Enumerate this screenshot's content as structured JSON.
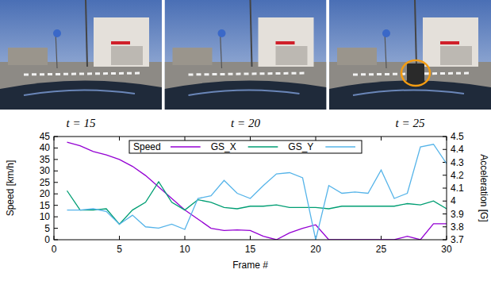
{
  "image_captions": [
    "t = 15",
    "t = 20",
    "t = 25"
  ],
  "chart_data": {
    "type": "line",
    "x_label": "Frame #",
    "y_label": "Speed [km/h]",
    "y2_label": "Acceleration [G]",
    "x": [
      1,
      2,
      3,
      4,
      5,
      6,
      7,
      8,
      9,
      10,
      11,
      12,
      13,
      14,
      15,
      16,
      17,
      18,
      19,
      20,
      21,
      22,
      23,
      24,
      25,
      26,
      27,
      28,
      29,
      30
    ],
    "xlim": [
      0,
      30
    ],
    "xticks": [
      0,
      5,
      10,
      15,
      20,
      25,
      30
    ],
    "ylim": [
      0,
      45
    ],
    "yticks": [
      0,
      5,
      10,
      15,
      20,
      25,
      30,
      35,
      40,
      45
    ],
    "y2lim": [
      3.7,
      4.5
    ],
    "y2ticks": [
      3.7,
      3.8,
      3.9,
      4,
      4.1,
      4.2,
      4.3,
      4.4,
      4.5
    ],
    "legend": "top",
    "series": [
      {
        "name": "Speed",
        "color": "#9400d3",
        "values": [
          42.5,
          41,
          38.5,
          37,
          35,
          32,
          28,
          23,
          18,
          13,
          9,
          5,
          4,
          4.3,
          4,
          1.5,
          0,
          3,
          5,
          6.5,
          0,
          0,
          0,
          0,
          0,
          0,
          1.5,
          0,
          7,
          7
        ]
      },
      {
        "name": "GS_X",
        "color": "#009e73",
        "axis": "y2",
        "values": [
          4.08,
          3.93,
          3.93,
          3.94,
          3.82,
          3.93,
          3.99,
          4.15,
          3.99,
          3.93,
          4.01,
          3.99,
          3.95,
          3.94,
          3.96,
          3.96,
          3.97,
          3.95,
          3.95,
          3.95,
          3.94,
          3.96,
          3.96,
          3.96,
          3.96,
          3.96,
          3.98,
          3.97,
          4.0,
          3.94
        ]
      },
      {
        "name": "GS_Y",
        "color": "#56b4e9",
        "axis": "y2",
        "values": [
          3.93,
          3.93,
          3.94,
          3.92,
          3.82,
          3.89,
          3.8,
          3.79,
          3.82,
          3.78,
          4.02,
          4.04,
          4.16,
          4.06,
          4.02,
          4.12,
          4.21,
          4.22,
          4.18,
          3.7,
          4.12,
          4.06,
          4.07,
          4.06,
          4.24,
          4.02,
          4.06,
          4.42,
          4.44,
          4.29
        ]
      }
    ]
  }
}
